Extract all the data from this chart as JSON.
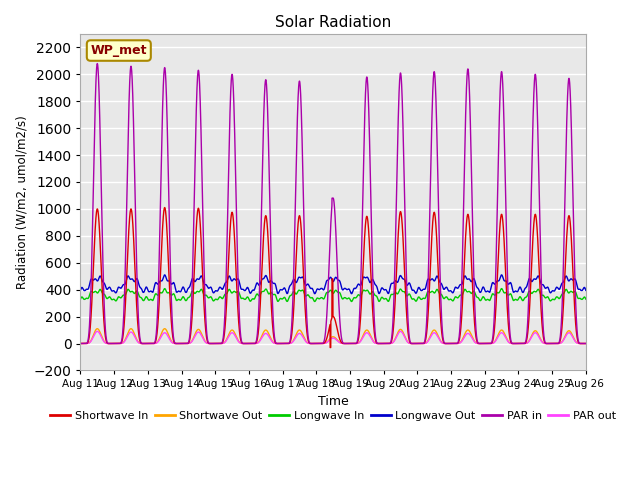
{
  "title": "Solar Radiation",
  "xlabel": "Time",
  "ylabel": "Radiation (W/m2, umol/m2/s)",
  "ylim": [
    -200,
    2300
  ],
  "yticks": [
    -200,
    0,
    200,
    400,
    600,
    800,
    1000,
    1200,
    1400,
    1600,
    1800,
    2000,
    2200
  ],
  "x_tick_labels": [
    "Aug 11",
    "Aug 12",
    "Aug 13",
    "Aug 14",
    "Aug 15",
    "Aug 16",
    "Aug 17",
    "Aug 18",
    "Aug 19",
    "Aug 20",
    "Aug 21",
    "Aug 22",
    "Aug 23",
    "Aug 24",
    "Aug 25",
    "Aug 26"
  ],
  "num_days": 15,
  "points_per_day": 288,
  "bg_color": "#e8e8e8",
  "legend_items": [
    {
      "label": "Shortwave In",
      "color": "#dd0000"
    },
    {
      "label": "Shortwave Out",
      "color": "#ffa500"
    },
    {
      "label": "Longwave In",
      "color": "#00cc00"
    },
    {
      "label": "Longwave Out",
      "color": "#0000cc"
    },
    {
      "label": "PAR in",
      "color": "#aa00aa"
    },
    {
      "label": "PAR out",
      "color": "#ff44ff"
    }
  ],
  "watermark_text": "WP_met",
  "watermark_bg": "#ffffcc",
  "watermark_border": "#aa8800",
  "shortwave_in_peaks": [
    1000,
    1000,
    1010,
    1005,
    975,
    950,
    950,
    200,
    945,
    980,
    975,
    960,
    960,
    960,
    950
  ],
  "shortwave_out_peaks": [
    110,
    110,
    110,
    105,
    100,
    100,
    100,
    50,
    100,
    105,
    100,
    100,
    100,
    95,
    95
  ],
  "longwave_in_base": 330,
  "longwave_out_base": 395,
  "longwave_in_day_bump": 60,
  "longwave_out_day_bump": 90,
  "par_in_peaks": [
    2080,
    2060,
    2050,
    2030,
    2000,
    1960,
    1950,
    1080,
    1980,
    2010,
    2020,
    2040,
    2020,
    2000,
    1970
  ],
  "par_out_peaks": [
    90,
    85,
    80,
    85,
    80,
    75,
    75,
    40,
    80,
    90,
    80,
    75,
    80,
    80,
    80
  ],
  "cloudy_day": 7,
  "line_width": 1.0,
  "sharpness": 4.0
}
